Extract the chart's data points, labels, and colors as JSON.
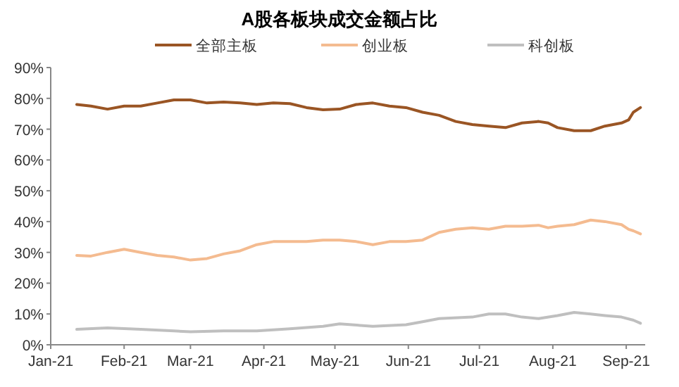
{
  "chart_data": {
    "type": "line",
    "title": "A股各板块成交金额占比",
    "legend": "top",
    "grid": false,
    "line_style": "solid",
    "marker": "none",
    "xlim": [
      "2021-01-01",
      "2021-09-09"
    ],
    "xticks": [
      {
        "value": "2021-01-01",
        "label": "Jan-21"
      },
      {
        "value": "2021-02-01",
        "label": "Feb-21"
      },
      {
        "value": "2021-03-01",
        "label": "Mar-21"
      },
      {
        "value": "2021-04-01",
        "label": "Apr-21"
      },
      {
        "value": "2021-05-01",
        "label": "May-21"
      },
      {
        "value": "2021-06-01",
        "label": "Jun-21"
      },
      {
        "value": "2021-07-01",
        "label": "Jul-21"
      },
      {
        "value": "2021-08-01",
        "label": "Aug-21"
      },
      {
        "value": "2021-09-01",
        "label": "Sep-21"
      }
    ],
    "ylim": [
      0,
      90
    ],
    "yticks": [
      {
        "value": 0,
        "label": "0%"
      },
      {
        "value": 10,
        "label": "10%"
      },
      {
        "value": 20,
        "label": "20%"
      },
      {
        "value": 30,
        "label": "30%"
      },
      {
        "value": 40,
        "label": "40%"
      },
      {
        "value": 50,
        "label": "50%"
      },
      {
        "value": 60,
        "label": "60%"
      },
      {
        "value": 70,
        "label": "70%"
      },
      {
        "value": 80,
        "label": "80%"
      },
      {
        "value": 90,
        "label": "90%"
      }
    ],
    "series": [
      {
        "name": "全部主板",
        "color": "#9a5524",
        "x": [
          "2021-01-12",
          "2021-01-18",
          "2021-01-25",
          "2021-02-01",
          "2021-02-08",
          "2021-02-15",
          "2021-02-22",
          "2021-03-01",
          "2021-03-08",
          "2021-03-15",
          "2021-03-22",
          "2021-03-29",
          "2021-04-05",
          "2021-04-12",
          "2021-04-19",
          "2021-04-26",
          "2021-05-03",
          "2021-05-10",
          "2021-05-17",
          "2021-05-24",
          "2021-05-31",
          "2021-06-07",
          "2021-06-14",
          "2021-06-21",
          "2021-06-28",
          "2021-07-05",
          "2021-07-12",
          "2021-07-19",
          "2021-07-26",
          "2021-07-30",
          "2021-08-03",
          "2021-08-10",
          "2021-08-17",
          "2021-08-23",
          "2021-08-30",
          "2021-09-02",
          "2021-09-04",
          "2021-09-07"
        ],
        "values": [
          78,
          77.5,
          76.5,
          77.5,
          77.5,
          78.5,
          79.5,
          79.5,
          78.5,
          78.8,
          78.5,
          78,
          78.5,
          78.3,
          77,
          76.3,
          76.5,
          78,
          78.5,
          77.5,
          77,
          75.5,
          74.5,
          72.5,
          71.5,
          71,
          70.5,
          72,
          72.5,
          72,
          70.5,
          69.5,
          69.5,
          71,
          72,
          73,
          75.5,
          77
        ]
      },
      {
        "name": "创业板",
        "color": "#f4bb90",
        "x": [
          "2021-01-12",
          "2021-01-18",
          "2021-01-25",
          "2021-02-01",
          "2021-02-08",
          "2021-02-15",
          "2021-02-22",
          "2021-03-01",
          "2021-03-08",
          "2021-03-15",
          "2021-03-22",
          "2021-03-29",
          "2021-04-05",
          "2021-04-12",
          "2021-04-19",
          "2021-04-26",
          "2021-05-03",
          "2021-05-10",
          "2021-05-17",
          "2021-05-24",
          "2021-05-31",
          "2021-06-07",
          "2021-06-14",
          "2021-06-21",
          "2021-06-28",
          "2021-07-05",
          "2021-07-12",
          "2021-07-19",
          "2021-07-26",
          "2021-07-30",
          "2021-08-03",
          "2021-08-10",
          "2021-08-17",
          "2021-08-23",
          "2021-08-30",
          "2021-09-02",
          "2021-09-04",
          "2021-09-07"
        ],
        "values": [
          29,
          28.8,
          30,
          31,
          30,
          29,
          28.5,
          27.5,
          28,
          29.5,
          30.5,
          32.5,
          33.5,
          33.5,
          33.5,
          34,
          34,
          33.5,
          32.5,
          33.5,
          33.5,
          34,
          36.5,
          37.5,
          38,
          37.5,
          38.5,
          38.5,
          38.8,
          38,
          38.5,
          39,
          40.5,
          40,
          39,
          37.5,
          37,
          36
        ]
      },
      {
        "name": "科创板",
        "color": "#bfbfbf",
        "x": [
          "2021-01-12",
          "2021-01-25",
          "2021-02-08",
          "2021-02-22",
          "2021-03-01",
          "2021-03-15",
          "2021-03-29",
          "2021-04-12",
          "2021-04-26",
          "2021-05-03",
          "2021-05-17",
          "2021-05-31",
          "2021-06-07",
          "2021-06-14",
          "2021-06-28",
          "2021-07-05",
          "2021-07-12",
          "2021-07-19",
          "2021-07-26",
          "2021-08-03",
          "2021-08-10",
          "2021-08-17",
          "2021-08-23",
          "2021-08-30",
          "2021-09-04",
          "2021-09-07"
        ],
        "values": [
          5,
          5.5,
          5,
          4.5,
          4.2,
          4.5,
          4.5,
          5.2,
          6,
          6.8,
          6,
          6.5,
          7.5,
          8.5,
          9,
          10,
          10,
          9,
          8.5,
          9.5,
          10.5,
          10,
          9.5,
          9,
          8,
          7
        ]
      }
    ]
  }
}
